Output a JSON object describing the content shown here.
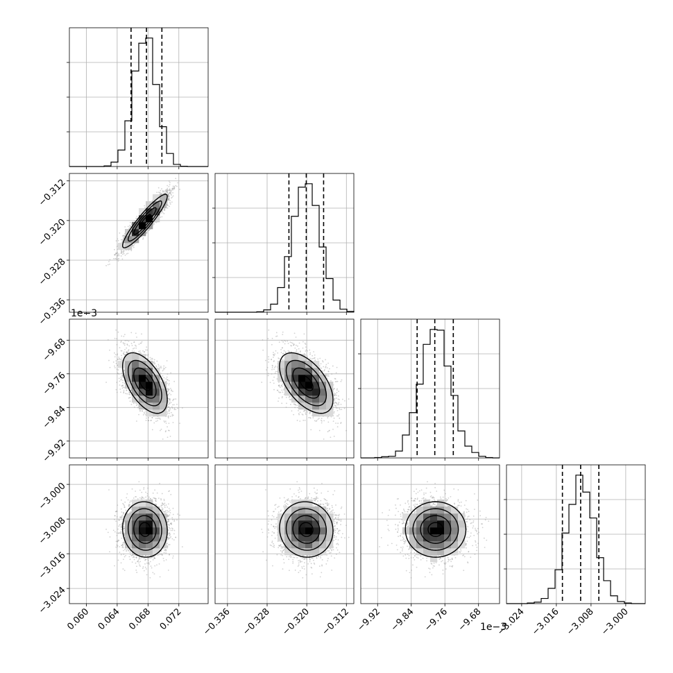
{
  "chart_data": {
    "type": "scatter",
    "subtype": "corner-plot",
    "grid": true,
    "quantile_lines": "dashed",
    "parameters": [
      {
        "index": 0,
        "range": [
          0.0578,
          0.0758
        ],
        "ticks": [
          "0.060",
          "0.064",
          "0.068",
          "0.072"
        ],
        "tick_values": [
          0.06,
          0.064,
          0.068,
          0.072
        ],
        "offset_label": "",
        "mean": 0.0676,
        "std": 0.00145,
        "quantiles": [
          0.0658,
          0.0678,
          0.0698
        ]
      },
      {
        "index": 1,
        "range": [
          -0.3385,
          -0.3105
        ],
        "ticks": [
          "−0.336",
          "−0.328",
          "−0.320",
          "−0.312"
        ],
        "tick_values": [
          -0.336,
          -0.328,
          -0.32,
          -0.312
        ],
        "offset_label": "",
        "mean": -0.3201,
        "std": 0.0027,
        "quantiles": [
          -0.3236,
          -0.3201,
          -0.3166
        ]
      },
      {
        "index": 2,
        "range": [
          -9.96,
          -9.63
        ],
        "ticks": [
          "−9.92",
          "−9.84",
          "−9.76",
          "−9.68"
        ],
        "tick_values": [
          -9.92,
          -9.84,
          -9.76,
          -9.68
        ],
        "offset_label": "1e−3",
        "mean": -9.782,
        "std": 0.036,
        "quantiles": [
          -9.826,
          -9.784,
          -9.74
        ]
      },
      {
        "index": 3,
        "range": [
          -3.0275,
          -2.9955
        ],
        "ticks": [
          "−3.024",
          "−3.016",
          "−3.008",
          "−3.000"
        ],
        "tick_values": [
          -3.024,
          -3.016,
          -3.008,
          -3.0
        ],
        "offset_label": "1e−3",
        "mean": -3.0104,
        "std": 0.0032,
        "quantiles": [
          -3.0146,
          -3.0104,
          -3.0062
        ]
      }
    ],
    "correlations": {
      "0-1": 0.92,
      "0-2": -0.55,
      "1-2": -0.55,
      "0-3": -0.05,
      "1-3": -0.05,
      "2-3": 0.0
    }
  }
}
